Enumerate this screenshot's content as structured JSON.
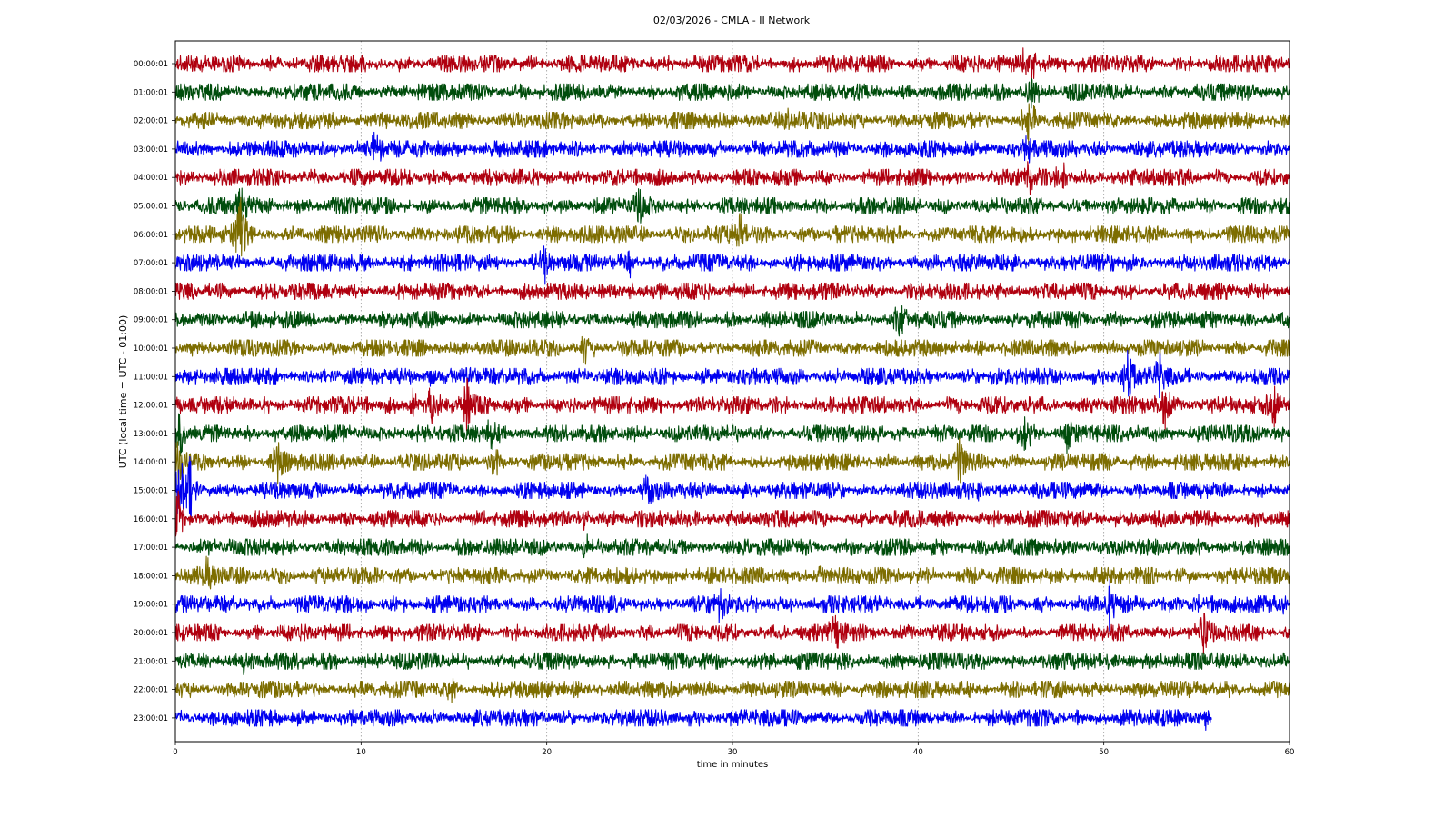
{
  "chart_data": {
    "type": "line",
    "title": "02/03/2026 - CMLA - II Network",
    "xlabel": "time in minutes",
    "ylabel": "UTC (local time = UTC - 01:00)",
    "xlim": [
      0,
      60
    ],
    "xticks": [
      0,
      10,
      20,
      30,
      40,
      50,
      60
    ],
    "grid": "vertical dotted",
    "colors": [
      "#b0000f",
      "#004d0c",
      "#7d6d00",
      "#0000f0"
    ],
    "rows": [
      {
        "label": "00:00:01",
        "color": "#b0000f",
        "end": 60,
        "events": [
          {
            "t": 46.0,
            "amp": 3.6
          },
          {
            "t": 45.9,
            "amp": 2.0
          }
        ]
      },
      {
        "label": "01:00:01",
        "color": "#004d0c",
        "end": 60,
        "events": [
          {
            "t": 46.0,
            "amp": 1.8
          }
        ]
      },
      {
        "label": "02:00:01",
        "color": "#7d6d00",
        "end": 60,
        "events": [
          {
            "t": 46.0,
            "amp": 1.8
          },
          {
            "t": 33.0,
            "amp": 1.2
          }
        ]
      },
      {
        "label": "03:00:01",
        "color": "#0000f0",
        "end": 60,
        "events": [
          {
            "t": 46.0,
            "amp": 1.4
          },
          {
            "t": 10.8,
            "amp": 1.2
          }
        ]
      },
      {
        "label": "04:00:01",
        "color": "#b0000f",
        "end": 60,
        "events": [
          {
            "t": 46.0,
            "amp": 1.1
          },
          {
            "t": 47.8,
            "amp": 1.2
          }
        ]
      },
      {
        "label": "05:00:01",
        "color": "#004d0c",
        "end": 60,
        "events": [
          {
            "t": 3.5,
            "amp": 1.4
          },
          {
            "t": 25.0,
            "amp": 1.1
          }
        ]
      },
      {
        "label": "06:00:01",
        "color": "#7d6d00",
        "end": 60,
        "events": [
          {
            "t": 3.5,
            "amp": 2.6
          },
          {
            "t": 30.4,
            "amp": 1.5
          }
        ]
      },
      {
        "label": "07:00:01",
        "color": "#0000f0",
        "end": 60,
        "events": [
          {
            "t": 19.9,
            "amp": 1.2
          },
          {
            "t": 24.5,
            "amp": 1.1
          }
        ]
      },
      {
        "label": "08:00:01",
        "color": "#b0000f",
        "end": 60,
        "events": [
          {
            "t": 24.6,
            "amp": 1.6
          }
        ]
      },
      {
        "label": "09:00:01",
        "color": "#004d0c",
        "end": 60,
        "events": [
          {
            "t": 39.0,
            "amp": 1.1
          }
        ]
      },
      {
        "label": "10:00:01",
        "color": "#7d6d00",
        "end": 60,
        "events": [
          {
            "t": 22.0,
            "amp": 1.2
          }
        ]
      },
      {
        "label": "11:00:01",
        "color": "#0000f0",
        "end": 60,
        "events": [
          {
            "t": 51.3,
            "amp": 1.7
          },
          {
            "t": 53.0,
            "amp": 1.5
          },
          {
            "t": 13.8,
            "amp": 1.3
          },
          {
            "t": 15.7,
            "amp": 1.3
          }
        ]
      },
      {
        "label": "12:00:01",
        "color": "#b0000f",
        "end": 60,
        "events": [
          {
            "t": 12.8,
            "amp": 1.5
          },
          {
            "t": 13.8,
            "amp": 1.6
          },
          {
            "t": 15.7,
            "amp": 1.6
          },
          {
            "t": 53.3,
            "amp": 1.4
          },
          {
            "t": 59.2,
            "amp": 1.4
          }
        ]
      },
      {
        "label": "13:00:01",
        "color": "#004d0c",
        "end": 60,
        "events": [
          {
            "t": 0.3,
            "amp": 1.8
          },
          {
            "t": 17.0,
            "amp": 1.5
          },
          {
            "t": 47.9,
            "amp": 1.7
          },
          {
            "t": 45.8,
            "amp": 1.2
          }
        ]
      },
      {
        "label": "14:00:01",
        "color": "#7d6d00",
        "end": 60,
        "events": [
          {
            "t": 0.2,
            "amp": 3.0
          },
          {
            "t": 5.5,
            "amp": 1.3
          },
          {
            "t": 17.2,
            "amp": 1.5
          },
          {
            "t": 42.2,
            "amp": 1.5
          }
        ]
      },
      {
        "label": "15:00:01",
        "color": "#0000f0",
        "end": 60,
        "events": [
          {
            "t": 0.3,
            "amp": 3.2
          },
          {
            "t": 0.8,
            "amp": 2.4
          },
          {
            "t": 25.5,
            "amp": 1.3
          },
          {
            "t": 43.3,
            "amp": 1.2
          }
        ]
      },
      {
        "label": "16:00:01",
        "color": "#b0000f",
        "end": 60,
        "events": [
          {
            "t": 0.1,
            "amp": 2.2
          },
          {
            "t": 22.0,
            "amp": 1.3
          }
        ]
      },
      {
        "label": "17:00:01",
        "color": "#004d0c",
        "end": 60,
        "events": [
          {
            "t": 22.0,
            "amp": 1.2
          }
        ]
      },
      {
        "label": "18:00:01",
        "color": "#7d6d00",
        "end": 60,
        "events": [
          {
            "t": 34.7,
            "amp": 1.7
          },
          {
            "t": 1.7,
            "amp": 1.1
          }
        ]
      },
      {
        "label": "19:00:01",
        "color": "#0000f0",
        "end": 60,
        "events": [
          {
            "t": 50.3,
            "amp": 1.6
          },
          {
            "t": 55.0,
            "amp": 1.4
          },
          {
            "t": 29.3,
            "amp": 1.3
          },
          {
            "t": 59.6,
            "amp": 1.4
          }
        ]
      },
      {
        "label": "20:00:01",
        "color": "#b0000f",
        "end": 60,
        "events": [
          {
            "t": 35.6,
            "amp": 1.8
          },
          {
            "t": 55.4,
            "amp": 1.3
          }
        ]
      },
      {
        "label": "21:00:01",
        "color": "#004d0c",
        "end": 60,
        "events": [
          {
            "t": 3.7,
            "amp": 1.0
          }
        ]
      },
      {
        "label": "22:00:01",
        "color": "#7d6d00",
        "end": 60,
        "events": [
          {
            "t": 14.8,
            "amp": 1.0
          }
        ]
      },
      {
        "label": "23:00:01",
        "color": "#0000f0",
        "end": 55.8,
        "events": [
          {
            "t": 55.5,
            "amp": 1.0
          }
        ]
      }
    ]
  }
}
